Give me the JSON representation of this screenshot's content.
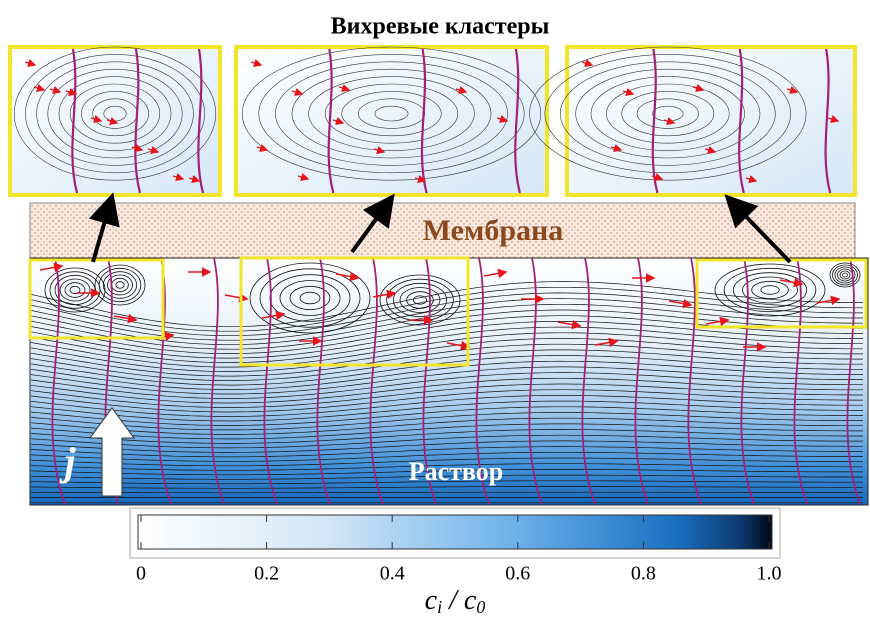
{
  "title": "Вихревые кластеры",
  "membrane_label": "Мембрана",
  "solution_label": "Раствор",
  "current_label": "j",
  "colorbar": {
    "ticks": [
      0,
      0.2,
      0.4,
      0.6,
      0.8,
      {
        "value": 1,
        "label": "1.0"
      }
    ],
    "label_parts": [
      "c",
      "i",
      " / c",
      "0"
    ]
  }
}
